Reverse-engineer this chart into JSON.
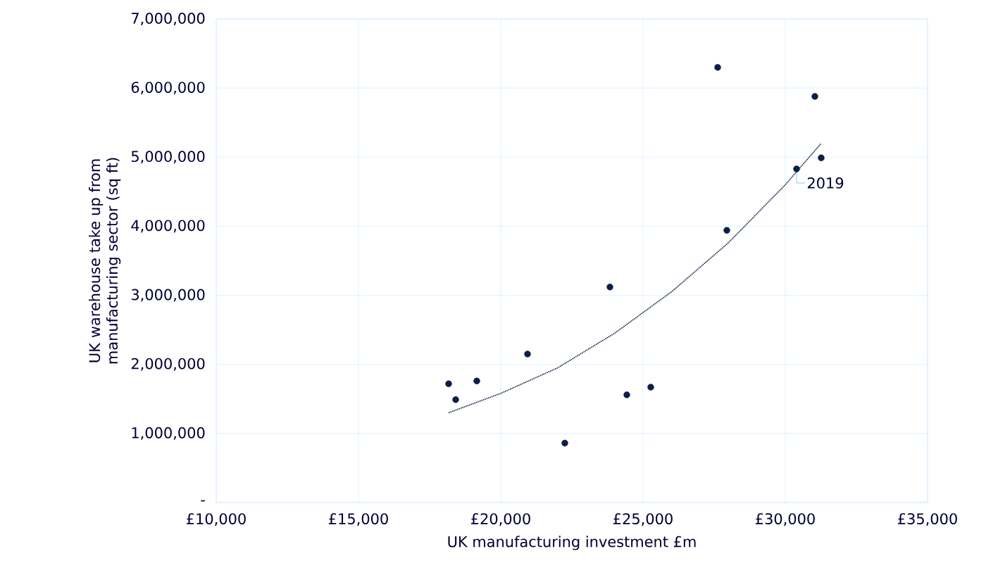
{
  "chart_data": {
    "type": "scatter",
    "xlabel": "UK manufacturing investment £m",
    "ylabel": "UK warehouse take up from manufacturing sector (sq ft)",
    "series": [
      {
        "color": "#0b1f45",
        "marker": "circle",
        "x": [
          18168,
          18416,
          19158,
          20941,
          22252,
          23837,
          24431,
          25272,
          27624,
          27946,
          30396,
          31040,
          31262
        ],
        "values": [
          1720000,
          1490000,
          1760000,
          2150000,
          860000,
          3120000,
          1560000,
          1670000,
          6300000,
          3940000,
          4830000,
          5880000,
          4990000
        ]
      },
      {
        "type": "line",
        "color": "#0b1f45",
        "line_style": "dotted",
        "marker": "none",
        "x": [
          18168,
          20000,
          22000,
          24000,
          26000,
          28000,
          30000,
          31262
        ],
        "values": [
          1300000,
          1580000,
          1950000,
          2450000,
          3050000,
          3760000,
          4600000,
          5200000
        ]
      }
    ],
    "annotations": [
      {
        "text": "2019",
        "x": 30396,
        "y": 4830000
      }
    ],
    "xlim": [
      10000,
      35000
    ],
    "ylim": [
      0,
      7000000
    ],
    "xticks": [
      {
        "value": 10000,
        "label": "£10,000"
      },
      {
        "value": 15000,
        "label": "£15,000"
      },
      {
        "value": 20000,
        "label": "£20,000"
      },
      {
        "value": 25000,
        "label": "£25,000"
      },
      {
        "value": 30000,
        "label": "£30,000"
      },
      {
        "value": 35000,
        "label": "£35,000"
      }
    ],
    "yticks": [
      {
        "value": 0,
        "label": "-"
      },
      {
        "value": 1000000,
        "label": "1,000,000"
      },
      {
        "value": 2000000,
        "label": "2,000,000"
      },
      {
        "value": 3000000,
        "label": "3,000,000"
      },
      {
        "value": 4000000,
        "label": "4,000,000"
      },
      {
        "value": 5000000,
        "label": "5,000,000"
      },
      {
        "value": 6000000,
        "label": "6,000,000"
      },
      {
        "value": 7000000,
        "label": "7,000,000"
      }
    ],
    "grid": true
  }
}
